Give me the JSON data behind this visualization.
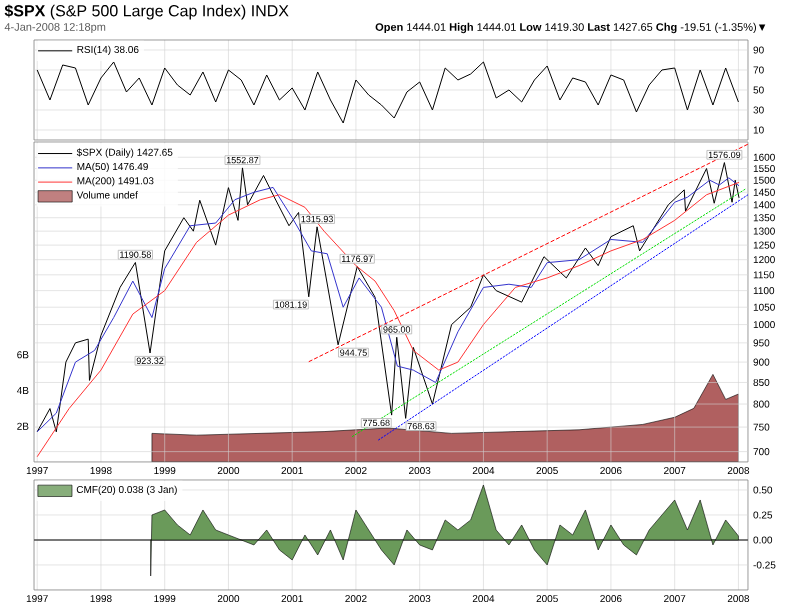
{
  "chart_data": [
    {
      "type": "line",
      "title": "**$SPX** (S&P 500 Large Cap Index) INDX",
      "subtitle": "4-Jan-2008 12:18pm",
      "annotations": [
        "**Open** 1444.01 **High** 1444.01 **Low** 1419.30 **Last** 1427.65 **Chg** -19.51 (-1.35%)▼"
      ],
      "x": [
        1997.0,
        1997.2,
        1997.4,
        1997.6,
        1997.8,
        1998.0,
        1998.2,
        1998.4,
        1998.6,
        1998.8,
        1999.0,
        1999.2,
        1999.4,
        1999.6,
        1999.8,
        2000.0,
        2000.2,
        2000.4,
        2000.6,
        2000.8,
        2001.0,
        2001.2,
        2001.4,
        2001.6,
        2001.8,
        2002.0,
        2002.2,
        2002.4,
        2002.6,
        2002.8,
        2003.0,
        2003.2,
        2003.4,
        2003.6,
        2003.8,
        2004.0,
        2004.2,
        2004.4,
        2004.6,
        2004.8,
        2005.0,
        2005.2,
        2005.4,
        2005.6,
        2005.8,
        2006.0,
        2006.2,
        2006.4,
        2006.6,
        2006.8,
        2007.0,
        2007.2,
        2007.4,
        2007.6,
        2007.8,
        2008.0
      ],
      "series": [
        {
          "name": "RSI(14) 38.06",
          "color": "#000000",
          "values": [
            70,
            40,
            75,
            72,
            35,
            62,
            78,
            48,
            62,
            35,
            72,
            55,
            45,
            68,
            38,
            70,
            60,
            35,
            65,
            40,
            52,
            30,
            68,
            40,
            17,
            60,
            45,
            35,
            22,
            48,
            58,
            30,
            72,
            60,
            66,
            78,
            42,
            50,
            38,
            60,
            74,
            40,
            62,
            58,
            35,
            65,
            60,
            28,
            55,
            70,
            72,
            30,
            70,
            35,
            72,
            38
          ]
        }
      ],
      "xlim": [
        1996.95,
        2008.15
      ],
      "xticks": [
        1997,
        1998,
        1999,
        2000,
        2001,
        2002,
        2003,
        2004,
        2005,
        2006,
        2007,
        2008
      ],
      "ylim": [
        0,
        100
      ],
      "yticks": [
        10,
        30,
        50,
        70,
        90
      ],
      "grid": true,
      "legend": "top left",
      "tick_labels": "y"
    },
    {
      "type": "line",
      "log": true,
      "series": [
        {
          "name": "$SPX (Daily) 1427.65",
          "color": "#000000",
          "x": [
            1997.0,
            1997.2,
            1997.3,
            1997.45,
            1997.6,
            1997.8,
            1997.82,
            1998.0,
            1998.3,
            1998.54,
            1998.77,
            1999.0,
            1999.3,
            1999.45,
            1999.55,
            1999.8,
            2000.0,
            2000.15,
            2000.22,
            2000.3,
            2000.55,
            2000.7,
            2000.95,
            2001.1,
            2001.26,
            2001.39,
            2001.72,
            2002.02,
            2002.3,
            2002.56,
            2002.64,
            2002.78,
            2002.9,
            2003.2,
            2003.5,
            2003.8,
            2004.0,
            2004.2,
            2004.6,
            2004.95,
            2005.3,
            2005.6,
            2005.8,
            2006.0,
            2006.35,
            2006.45,
            2006.9,
            2007.15,
            2007.17,
            2007.5,
            2007.62,
            2007.78,
            2007.9,
            2007.95,
            2008.01
          ],
          "values": [
            740,
            790,
            740,
            900,
            950,
            960,
            855,
            970,
            1110,
            1190.58,
            923.32,
            1230,
            1350,
            1300,
            1418,
            1250,
            1469,
            1340,
            1552.87,
            1400,
            1520,
            1440,
            1320,
            1370,
            1081.19,
            1315.93,
            944.75,
            1176.97,
            1080,
            775.68,
            965,
            768.63,
            938,
            800,
            1000,
            1050,
            1150,
            1100,
            1065,
            1210,
            1140,
            1240,
            1180,
            1280,
            1320,
            1230,
            1400,
            1460,
            1375,
            1550,
            1406,
            1576.09,
            1410,
            1500,
            1427.65
          ]
        },
        {
          "name": "MA(50) 1476.49",
          "color": "#3333cc",
          "x": [
            1997.0,
            1997.3,
            1997.6,
            1997.9,
            1998.2,
            1998.5,
            1998.8,
            1999.0,
            1999.4,
            1999.8,
            2000.1,
            2000.4,
            2000.7,
            2001.0,
            2001.3,
            2001.55,
            2001.8,
            2002.05,
            2002.4,
            2002.65,
            2002.9,
            2003.25,
            2003.6,
            2004.0,
            2004.4,
            2004.75,
            2005.0,
            2005.5,
            2006.0,
            2006.5,
            2007.0,
            2007.2,
            2007.55,
            2007.7,
            2007.85,
            2008.01
          ],
          "values": [
            740,
            780,
            900,
            930,
            1020,
            1130,
            1020,
            1170,
            1320,
            1330,
            1420,
            1450,
            1470,
            1350,
            1230,
            1220,
            1050,
            1140,
            1050,
            890,
            880,
            850,
            980,
            1110,
            1120,
            1110,
            1190,
            1200,
            1270,
            1260,
            1410,
            1430,
            1500,
            1480,
            1510,
            1476.49
          ]
        },
        {
          "name": "MA(200) 1491.03",
          "color": "#ff3333",
          "x": [
            1997.0,
            1997.5,
            1998.0,
            1998.5,
            1999.0,
            1999.5,
            2000.0,
            2000.5,
            2000.8,
            2001.2,
            2001.5,
            2002.0,
            2002.3,
            2002.6,
            2002.9,
            2003.3,
            2003.6,
            2004.0,
            2004.5,
            2005.0,
            2005.5,
            2006.0,
            2006.5,
            2007.0,
            2007.5,
            2008.01
          ],
          "values": [
            690,
            790,
            880,
            1030,
            1100,
            1260,
            1360,
            1420,
            1440,
            1390,
            1300,
            1180,
            1130,
            1040,
            930,
            880,
            900,
            1000,
            1110,
            1140,
            1180,
            1230,
            1270,
            1340,
            1440,
            1491.03
          ]
        },
        {
          "name": "Volume undef",
          "type": "area",
          "axis": "y2",
          "color": "#b06060",
          "x": [
            1998.8,
            1999.5,
            2000.5,
            2001.5,
            2002.5,
            2003.5,
            2004.5,
            2005.5,
            2006.5,
            2007.0,
            2007.3,
            2007.6,
            2007.8,
            2008.0
          ],
          "values": [
            1.6,
            1.5,
            1.6,
            1.7,
            1.9,
            1.6,
            1.7,
            1.8,
            2.1,
            2.5,
            3.0,
            4.9,
            3.5,
            3.8
          ]
        },
        {
          "type": "line",
          "color": "#ff0000",
          "line_style": "dashed",
          "x": [
            2001.26,
            2008.15
          ],
          "values": [
            901,
            1660
          ]
        },
        {
          "type": "line",
          "color": "#00dd00",
          "line_style": "dotted",
          "x": [
            2001.94,
            2008.12
          ],
          "values": [
            730,
            1465
          ]
        },
        {
          "type": "line",
          "color": "#0000ff",
          "line_style": "dotted",
          "x": [
            2002.35,
            2008.15
          ],
          "values": [
            723,
            1440
          ]
        }
      ],
      "xlim": [
        1996.95,
        2008.15
      ],
      "xticks": [
        1997,
        1998,
        1999,
        2000,
        2001,
        2002,
        2003,
        2004,
        2005,
        2006,
        2007,
        2008
      ],
      "ylim": [
        680,
        1670
      ],
      "yticks": [
        700,
        750,
        800,
        850,
        900,
        950,
        1000,
        1050,
        1100,
        1150,
        1200,
        1250,
        1300,
        1350,
        1400,
        1450,
        1500,
        1550,
        1600
      ],
      "y2lim": [
        0,
        17.9
      ],
      "y2ticks": [
        {
          "value": 2,
          "label": "2B"
        },
        {
          "value": 4,
          "label": "4B"
        },
        {
          "value": 6,
          "label": "6B"
        }
      ],
      "grid": true,
      "legend": "top left",
      "annotations": [
        {
          "text": "1190.58",
          "x": 1998.54,
          "y": 1190.58
        },
        {
          "text": "923.32",
          "x": 1998.77,
          "y": 923.32
        },
        {
          "text": "1552.87",
          "x": 2000.22,
          "y": 1552.87
        },
        {
          "text": "1081.19",
          "x": 2001.26,
          "y": 1081.19
        },
        {
          "text": "1315.93",
          "x": 2001.39,
          "y": 1315.93
        },
        {
          "text": "944.75",
          "x": 2001.72,
          "y": 944.75
        },
        {
          "text": "1176.97",
          "x": 2002.02,
          "y": 1176.97
        },
        {
          "text": "775.68",
          "x": 2002.56,
          "y": 775.68
        },
        {
          "text": "965.00",
          "x": 2002.64,
          "y": 965
        },
        {
          "text": "768.63",
          "x": 2002.78,
          "y": 768.63
        },
        {
          "text": "1576.09",
          "x": 2007.78,
          "y": 1576.09
        }
      ]
    },
    {
      "type": "area",
      "series": [
        {
          "name": "CMF(20) 0.038 (3 Jan)",
          "color": "#6a9a5a",
          "x": [
            1998.78,
            1998.8,
            1999.0,
            1999.2,
            1999.4,
            1999.6,
            1999.8,
            2000.0,
            2000.2,
            2000.4,
            2000.6,
            2000.8,
            2001.0,
            2001.2,
            2001.4,
            2001.6,
            2001.8,
            2002.0,
            2002.2,
            2002.4,
            2002.6,
            2002.8,
            2003.0,
            2003.2,
            2003.4,
            2003.6,
            2003.8,
            2004.0,
            2004.2,
            2004.4,
            2004.6,
            2004.8,
            2005.0,
            2005.2,
            2005.4,
            2005.6,
            2005.8,
            2006.0,
            2006.2,
            2006.4,
            2006.6,
            2006.8,
            2007.0,
            2007.2,
            2007.4,
            2007.6,
            2007.8,
            2008.0
          ],
          "values": [
            -0.36,
            0.25,
            0.3,
            0.15,
            0.05,
            0.3,
            0.1,
            0.05,
            0.0,
            -0.05,
            0.1,
            -0.1,
            -0.2,
            0.05,
            -0.15,
            0.1,
            -0.2,
            0.3,
            0.1,
            -0.1,
            -0.25,
            0.1,
            -0.05,
            -0.1,
            0.2,
            0.1,
            0.2,
            0.55,
            0.1,
            -0.05,
            0.15,
            -0.1,
            -0.25,
            0.15,
            0.05,
            0.3,
            -0.1,
            0.15,
            -0.05,
            -0.15,
            0.1,
            0.25,
            0.4,
            0.1,
            0.4,
            -0.05,
            0.2,
            0.04
          ]
        }
      ],
      "xlim": [
        1996.95,
        2008.15
      ],
      "xticks": [
        1997,
        1998,
        1999,
        2000,
        2001,
        2002,
        2003,
        2004,
        2005,
        2006,
        2007,
        2008
      ],
      "ylim": [
        -0.5,
        0.6
      ],
      "yticks": [
        {
          "value": 0.5,
          "label": "0.50"
        },
        {
          "value": 0.25,
          "label": "0.25"
        },
        {
          "value": 0,
          "label": "0.00"
        },
        {
          "value": -0.25,
          "label": "-0.25"
        }
      ],
      "grid": true,
      "legend": "top left",
      "ref_lines": [
        {
          "axis": "y",
          "value": 0
        }
      ]
    }
  ]
}
